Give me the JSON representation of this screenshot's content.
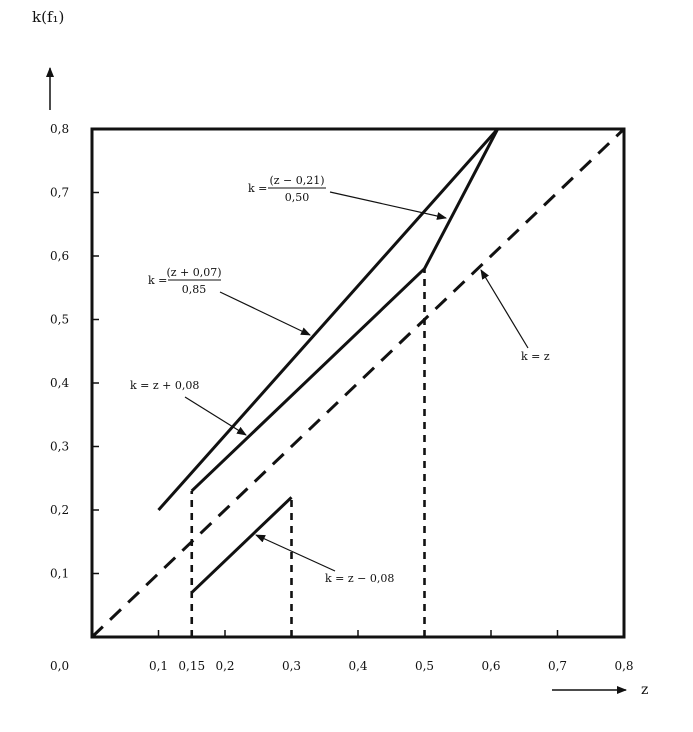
{
  "chart_data": {
    "type": "line",
    "ylabel": "k(f₁)",
    "xlabel": "z",
    "xlim": [
      0,
      0.8
    ],
    "ylim": [
      0,
      0.8
    ],
    "x_ticks": [
      "0,1",
      "0,15",
      "0,2",
      "0,3",
      "0,4",
      "0,5",
      "0,6",
      "0,7",
      "0,8"
    ],
    "x_tick_values": [
      0.1,
      0.15,
      0.2,
      0.3,
      0.4,
      0.5,
      0.6,
      0.7,
      0.8
    ],
    "y_ticks": [
      "0,1",
      "0,2",
      "0,3",
      "0,4",
      "0,5",
      "0,6",
      "0,7",
      "0,8"
    ],
    "y_tick_values": [
      0.1,
      0.2,
      0.3,
      0.4,
      0.5,
      0.6,
      0.7,
      0.8
    ],
    "origin_label": "0,0",
    "series": [
      {
        "name": "k = (z + 0,07) / 0,85",
        "style": "solid",
        "x": [
          0.1,
          0.61
        ],
        "y": [
          0.2,
          0.8
        ]
      },
      {
        "name": "k = z + 0,08",
        "style": "solid",
        "x": [
          0.15,
          0.5
        ],
        "y": [
          0.23,
          0.58
        ]
      },
      {
        "name": "k = (z − 0,21) / 0,50",
        "style": "solid",
        "x": [
          0.5,
          0.61
        ],
        "y": [
          0.58,
          0.8
        ]
      },
      {
        "name": "k = z − 0,08",
        "style": "solid",
        "x": [
          0.15,
          0.3
        ],
        "y": [
          0.07,
          0.22
        ]
      },
      {
        "name": "k = z",
        "style": "dashed",
        "x": [
          0,
          0.8
        ],
        "y": [
          0,
          0.8
        ]
      }
    ],
    "guides": [
      {
        "x": [
          0.15,
          0.15
        ],
        "y": [
          0,
          0.23
        ]
      },
      {
        "x": [
          0.3,
          0.3
        ],
        "y": [
          0,
          0.22
        ]
      },
      {
        "x": [
          0.5,
          0.5
        ],
        "y": [
          0,
          0.58
        ]
      }
    ],
    "annotations": {
      "a_prefix": "k =",
      "a_num": "(z − 0,21)",
      "a_den": "0,50",
      "b_prefix": "k =",
      "b_num": "(z + 0,07)",
      "b_den": "0,85",
      "c": "k = z + 0,08",
      "d": "k = z",
      "e": "k = z − 0,08"
    },
    "grid": false,
    "legend": "none"
  }
}
